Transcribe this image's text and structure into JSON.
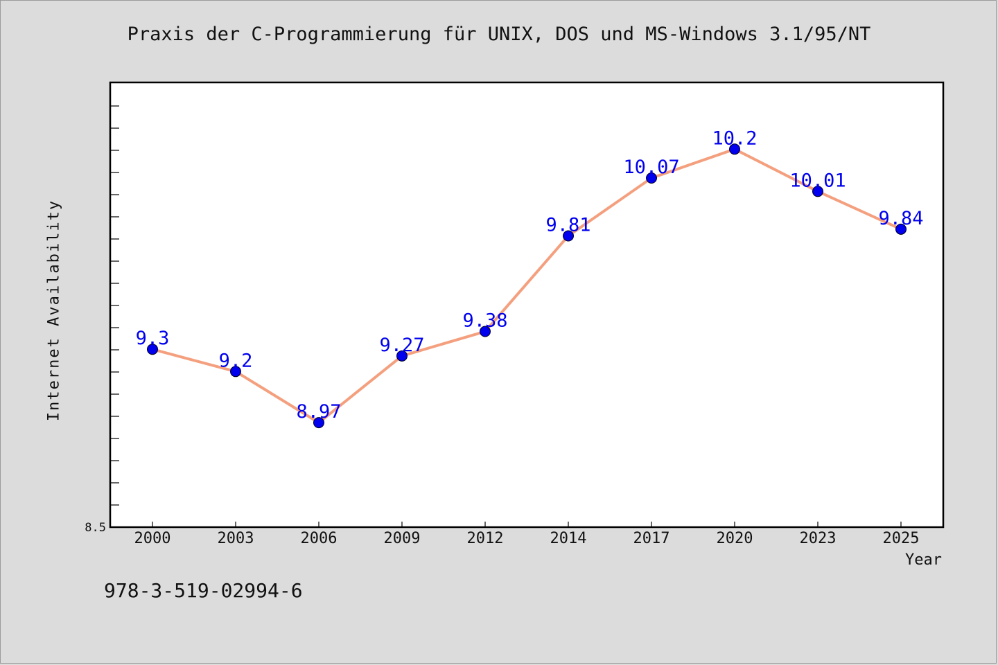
{
  "chart_data": {
    "type": "line",
    "title": "Praxis der C-Programmierung für UNIX, DOS und MS-Windows 3.1/95/NT",
    "xlabel": "Year",
    "ylabel": "Internet Availability",
    "categories": [
      "2000",
      "2003",
      "2006",
      "2009",
      "2012",
      "2014",
      "2017",
      "2020",
      "2023",
      "2025"
    ],
    "series": [
      {
        "values": [
          9.3,
          9.2,
          8.97,
          9.27,
          9.38,
          9.81,
          10.07,
          10.2,
          10.01,
          9.84
        ],
        "labels": [
          "9.3",
          "9.2",
          "8.97",
          "9.27",
          "9.38",
          "9.81",
          "10.07",
          "10.2",
          "10.01",
          "9.84"
        ]
      }
    ],
    "ylim": [
      8.5,
      10.5
    ],
    "y_tick_label": "8.5",
    "grid": false,
    "legend": "none",
    "colors": {
      "line": "#f4a07f",
      "marker": "#0000ee",
      "label": "#0000ee",
      "background": "#dcdcdc",
      "plot_background": "#ffffff"
    }
  },
  "footnote": "978-3-519-02994-6"
}
